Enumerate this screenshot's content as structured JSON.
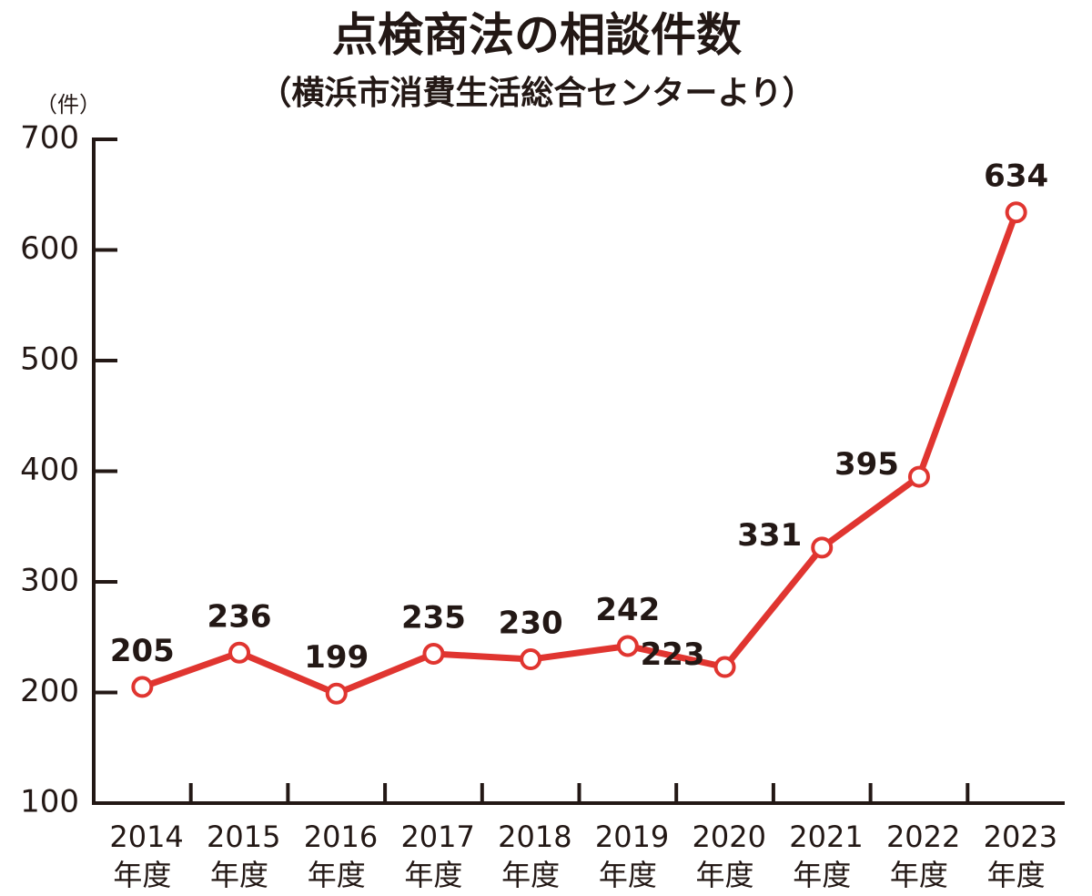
{
  "chart_data": {
    "type": "line",
    "title": "点検商法の相談件数",
    "subtitle": "（横浜市消費生活総合センターより）",
    "y_label": "（件）",
    "categories": [
      "2014年度",
      "2015年度",
      "2016年度",
      "2017年度",
      "2018年度",
      "2019年度",
      "2020年度",
      "2021年度",
      "2022年度",
      "2023年度"
    ],
    "values": [
      205,
      236,
      199,
      235,
      230,
      242,
      223,
      331,
      395,
      634
    ],
    "color": "#e03530",
    "ylim": [
      100,
      700
    ],
    "yticks": [
      100,
      200,
      300,
      400,
      500,
      600,
      700
    ]
  }
}
